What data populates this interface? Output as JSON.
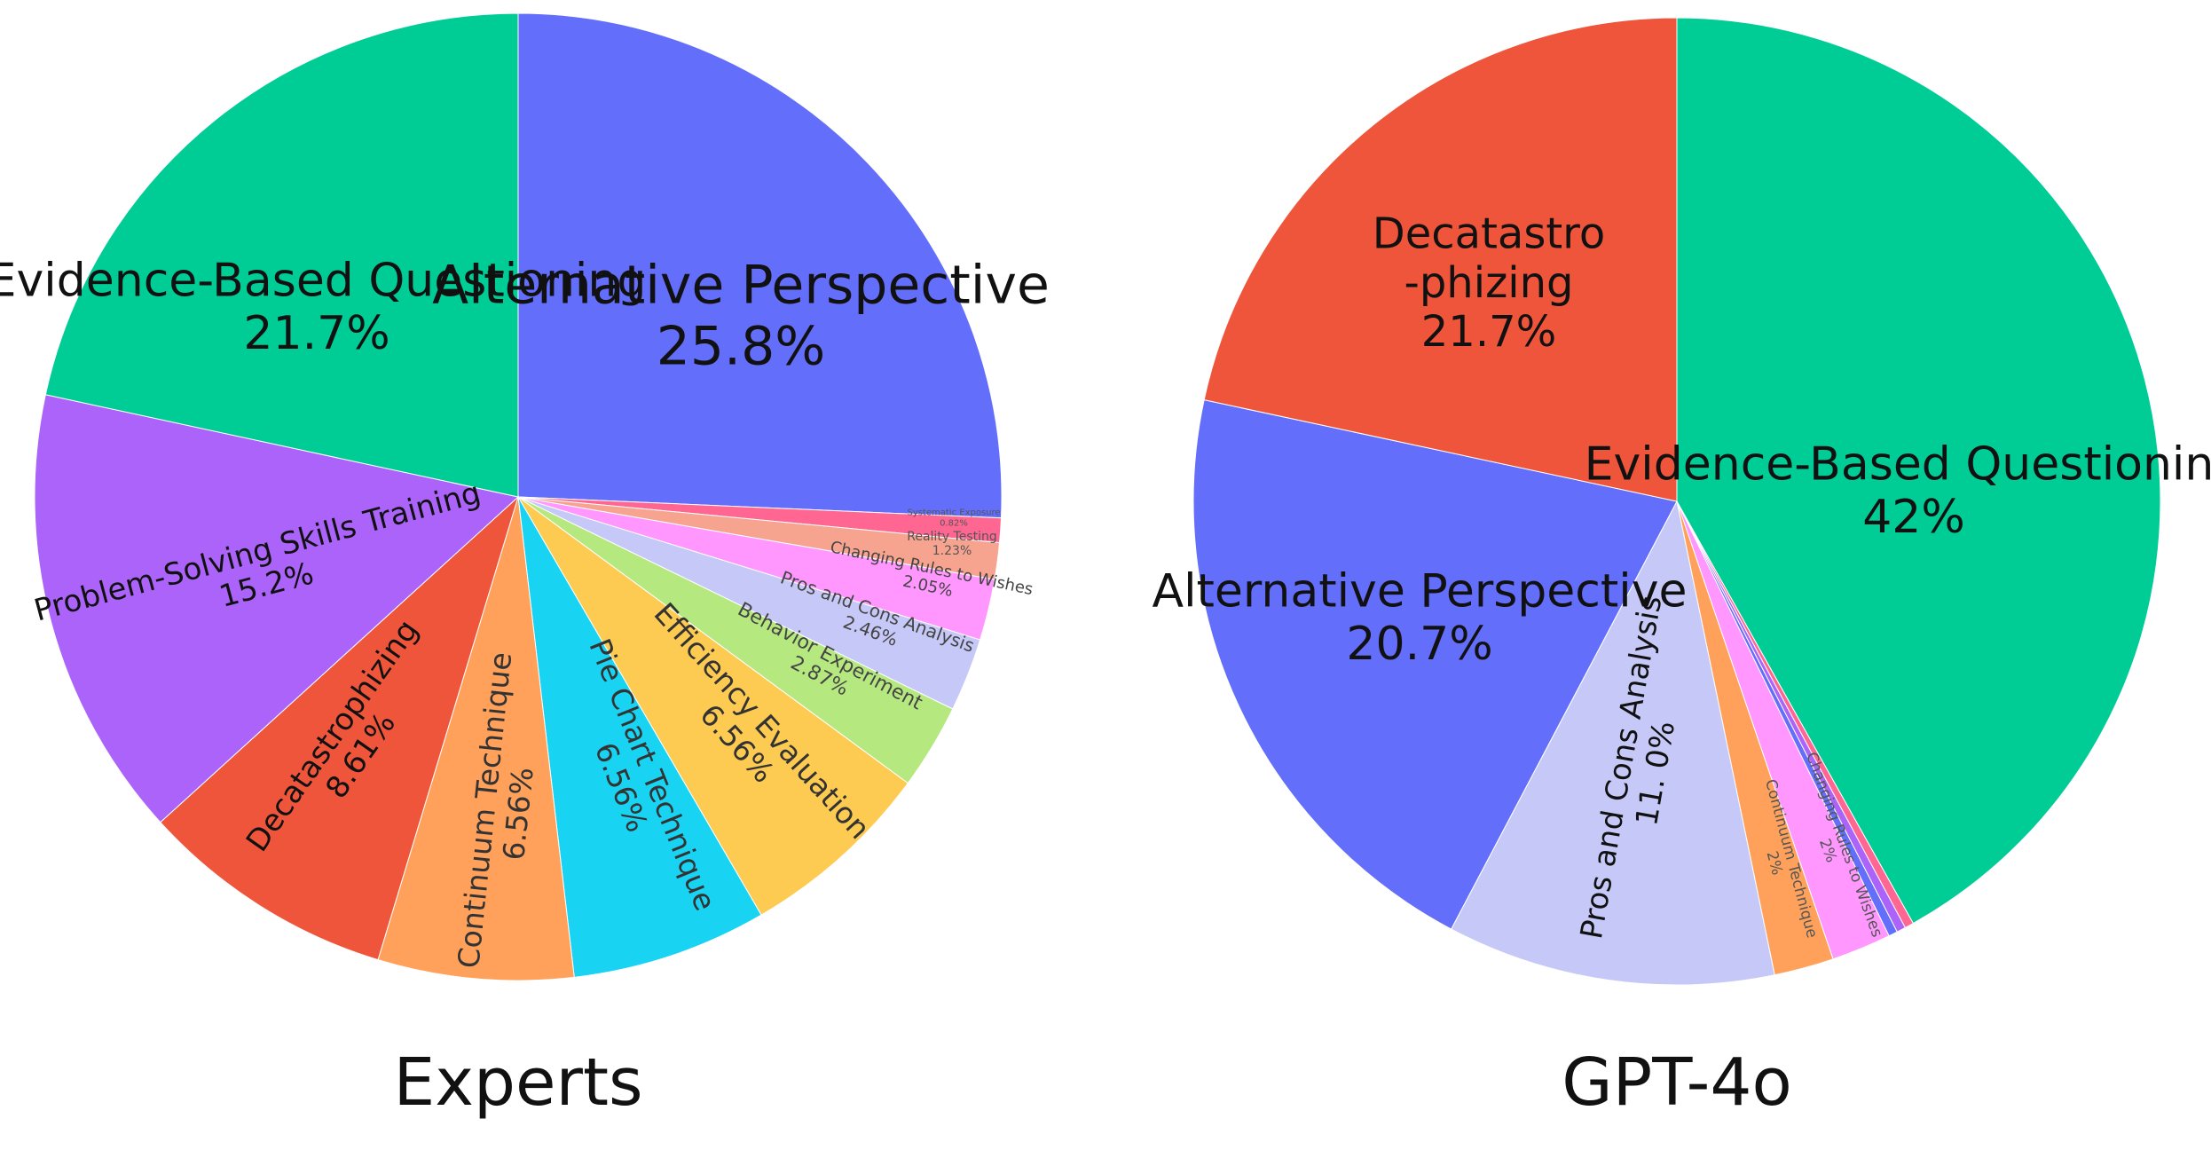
{
  "chart_data": [
    {
      "type": "pie",
      "title": "Experts",
      "slices": [
        {
          "label": "Alternative Perspective",
          "value": 25.8,
          "value_label": "25.8%",
          "color": "#636efa"
        },
        {
          "label": "Systematic Exposure",
          "value": 0.82,
          "value_label": "0.82%",
          "color": "#ff6692"
        },
        {
          "label": "Reality Testing",
          "value": 1.23,
          "value_label": "1.23%",
          "color": "#f6a38f"
        },
        {
          "label": "Changing Rules to Wishes",
          "value": 2.05,
          "value_label": "2.05%",
          "color": "#ff97ff"
        },
        {
          "label": "Pros and Cons Analysis",
          "value": 2.46,
          "value_label": "2.46%",
          "color": "#c6c9f7"
        },
        {
          "label": "Behavior Experiment",
          "value": 2.87,
          "value_label": "2.87%",
          "color": "#b6e880"
        },
        {
          "label": "Efficiency Evaluation",
          "value": 6.56,
          "value_label": "6.56%",
          "color": "#fecb52"
        },
        {
          "label": "Pie Chart Technique",
          "value": 6.56,
          "value_label": "6.56%",
          "color": "#19d3f3"
        },
        {
          "label": "Continuum Technique",
          "value": 6.56,
          "value_label": "6.56%",
          "color": "#ffa15a"
        },
        {
          "label": "Decatastrophizing",
          "value": 8.61,
          "value_label": "8.61%",
          "color": "#ef553b"
        },
        {
          "label": "Problem-Solving Skills Training",
          "value": 15.2,
          "value_label": "15.2%",
          "color": "#ab63fa"
        },
        {
          "label": "Evidence-Based Questioning",
          "value": 21.7,
          "value_label": "21.7%",
          "color": "#00cc96"
        }
      ]
    },
    {
      "type": "pie",
      "title": "GPT-4o",
      "slices": [
        {
          "label": "Evidence-Based Questioning",
          "value": 42,
          "value_label": "42%",
          "color": "#00cc96"
        },
        {
          "label": "",
          "value": 0.3,
          "value_label": "",
          "color": "#ff6692"
        },
        {
          "label": "",
          "value": 0.3,
          "value_label": "",
          "color": "#ab63fa"
        },
        {
          "label": "",
          "value": 0.3,
          "value_label": "",
          "color": "#636efa"
        },
        {
          "label": "Changing Rules to Wishes",
          "value": 2,
          "value_label": "2%",
          "color": "#ff97ff"
        },
        {
          "label": "Continuum Technique",
          "value": 2,
          "value_label": "2%",
          "color": "#ffa15a"
        },
        {
          "label": "Pros and Cons Analysis",
          "value": 11.0,
          "value_label": "11. 0%",
          "color": "#c6c9f7"
        },
        {
          "label": "Alternative Perspective",
          "value": 20.7,
          "value_label": "20.7%",
          "color": "#636efa"
        },
        {
          "label": "Decatastro\n-phizing",
          "value": 21.7,
          "value_label": "21.7%",
          "color": "#ef553b"
        }
      ]
    }
  ]
}
